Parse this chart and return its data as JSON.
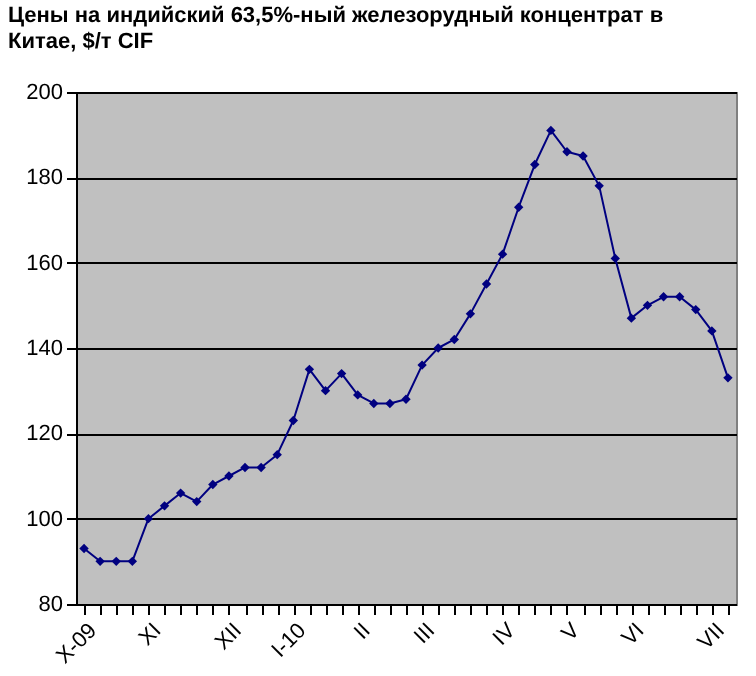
{
  "chart_data": {
    "type": "line",
    "title": "Цены на индийский 63,5%-ный железорудный концентрат в Китае, $/т CIF",
    "categories": [
      "X-09",
      null,
      null,
      null,
      "XI",
      null,
      null,
      null,
      null,
      "XII",
      null,
      null,
      null,
      "I-10",
      null,
      null,
      null,
      "II",
      null,
      null,
      null,
      "III",
      null,
      null,
      null,
      null,
      "IV",
      null,
      null,
      null,
      "V",
      null,
      null,
      null,
      "VI",
      null,
      null,
      null,
      null,
      "VII",
      null
    ],
    "series": [
      {
        "color": "#000080",
        "values": [
          93,
          90,
          90,
          90,
          100,
          103,
          106,
          104,
          108,
          110,
          112,
          112,
          115,
          123,
          135,
          130,
          134,
          129,
          127,
          127,
          128,
          136,
          140,
          142,
          148,
          155,
          162,
          173,
          183,
          191,
          186,
          185,
          178,
          161,
          147,
          150,
          152,
          152,
          149,
          144,
          133
        ]
      }
    ],
    "ylim": [
      80,
      200
    ],
    "yticks": [
      80,
      100,
      120,
      140,
      160,
      180,
      200
    ],
    "grid": "y",
    "marker": "diamond"
  }
}
